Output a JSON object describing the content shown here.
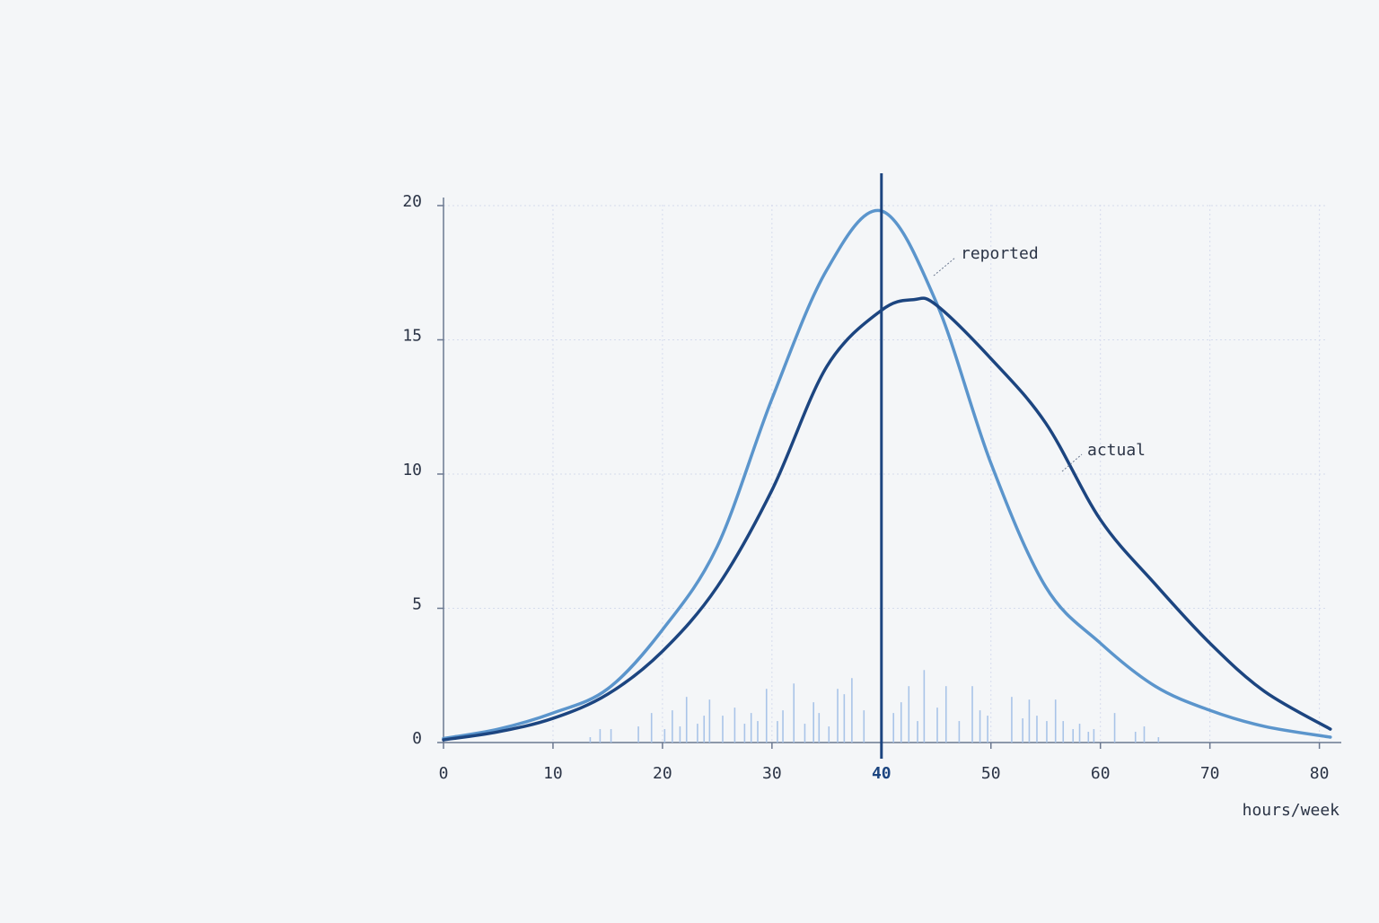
{
  "chart_data": {
    "type": "line",
    "x_label": "hours/week",
    "xlim": [
      0,
      82
    ],
    "ylim": [
      0,
      20.3
    ],
    "xticks": [
      0,
      10,
      20,
      30,
      40,
      50,
      60,
      70,
      80
    ],
    "yticks": [
      0,
      5,
      10,
      15,
      20
    ],
    "grid": true,
    "reference_x": 40,
    "reference_color": "#1c4580",
    "series": [
      {
        "name": "reported",
        "color": "#5b95cc",
        "x": [
          0,
          5,
          10,
          15,
          20,
          25,
          30,
          35,
          40,
          45,
          50,
          55,
          60,
          65,
          70,
          75,
          81
        ],
        "values": [
          0.15,
          0.5,
          1.1,
          2.0,
          4.2,
          7.3,
          12.8,
          17.6,
          19.8,
          16.4,
          10.4,
          5.8,
          3.7,
          2.1,
          1.2,
          0.6,
          0.2
        ]
      },
      {
        "name": "actual",
        "color": "#1c4580",
        "x": [
          0,
          5,
          10,
          15,
          20,
          25,
          30,
          35,
          40,
          43,
          45,
          50,
          55,
          60,
          65,
          70,
          75,
          81
        ],
        "values": [
          0.1,
          0.4,
          0.9,
          1.8,
          3.4,
          5.8,
          9.4,
          14.0,
          16.1,
          16.5,
          16.3,
          14.3,
          11.9,
          8.3,
          5.9,
          3.7,
          1.9,
          0.5
        ]
      }
    ],
    "samples": {
      "color": "#a9c4e8",
      "x": [
        13.4,
        14.3,
        15.3,
        17.8,
        19.0,
        20.2,
        20.9,
        21.6,
        22.2,
        23.2,
        23.8,
        24.3,
        25.5,
        26.6,
        27.5,
        28.1,
        28.7,
        29.5,
        30.5,
        31.0,
        32.0,
        33.0,
        33.8,
        34.3,
        35.2,
        36.0,
        36.6,
        37.3,
        38.4,
        41.1,
        41.8,
        42.5,
        43.3,
        43.9,
        45.1,
        45.9,
        47.1,
        48.3,
        49.0,
        49.7,
        51.9,
        52.9,
        53.5,
        54.2,
        55.1,
        55.9,
        56.6,
        57.5,
        58.1,
        58.9,
        59.4,
        61.3,
        63.2,
        64.0,
        65.3
      ],
      "values": [
        0.2,
        0.5,
        0.5,
        0.6,
        1.1,
        0.5,
        1.2,
        0.6,
        1.7,
        0.7,
        1.0,
        1.6,
        1.0,
        1.3,
        0.7,
        1.1,
        0.8,
        2.0,
        0.8,
        1.2,
        2.2,
        0.7,
        1.5,
        1.1,
        0.6,
        2.0,
        1.8,
        2.4,
        1.2,
        1.1,
        1.5,
        2.1,
        0.8,
        2.7,
        1.3,
        2.1,
        0.8,
        2.1,
        1.2,
        1.0,
        1.7,
        0.9,
        1.6,
        1.0,
        0.8,
        1.6,
        0.8,
        0.5,
        0.7,
        0.4,
        0.5,
        1.1,
        0.4,
        0.6,
        0.2
      ]
    }
  }
}
